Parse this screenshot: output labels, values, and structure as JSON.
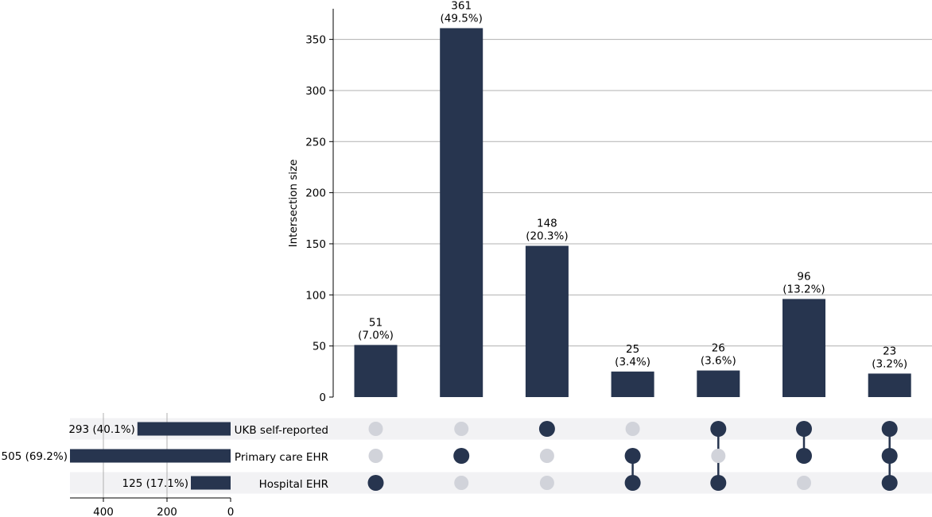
{
  "chart_data": {
    "type": "bar",
    "subtype": "upset",
    "ylabel": "Intersection size",
    "ylim": [
      0,
      380
    ],
    "yticks": [
      0,
      50,
      100,
      150,
      200,
      250,
      300,
      350
    ],
    "grid": true,
    "bar_color": "#27354f",
    "inactive_dot_color": "#d1d3da",
    "band_color": "#f2f2f4",
    "sets": [
      {
        "name": "UKB self-reported",
        "size": 293,
        "label": "293 (40.1%)"
      },
      {
        "name": "Primary care EHR",
        "size": 505,
        "label": "505 (69.2%)"
      },
      {
        "name": "Hospital EHR",
        "size": 125,
        "label": "125 (17.1%)"
      }
    ],
    "set_size_axis": {
      "ticks": [
        400,
        200,
        0
      ],
      "max": 505
    },
    "intersections": [
      {
        "members": [
          false,
          false,
          true
        ],
        "value": 51,
        "label": "51",
        "pct": "(7.0%)"
      },
      {
        "members": [
          false,
          true,
          false
        ],
        "value": 361,
        "label": "361",
        "pct": "(49.5%)"
      },
      {
        "members": [
          true,
          false,
          false
        ],
        "value": 148,
        "label": "148",
        "pct": "(20.3%)"
      },
      {
        "members": [
          false,
          true,
          true
        ],
        "value": 25,
        "label": "25",
        "pct": "(3.4%)"
      },
      {
        "members": [
          true,
          false,
          true
        ],
        "value": 26,
        "label": "26",
        "pct": "(3.6%)"
      },
      {
        "members": [
          true,
          true,
          false
        ],
        "value": 96,
        "label": "96",
        "pct": "(13.2%)"
      },
      {
        "members": [
          true,
          true,
          true
        ],
        "value": 23,
        "label": "23",
        "pct": "(3.2%)"
      }
    ]
  }
}
